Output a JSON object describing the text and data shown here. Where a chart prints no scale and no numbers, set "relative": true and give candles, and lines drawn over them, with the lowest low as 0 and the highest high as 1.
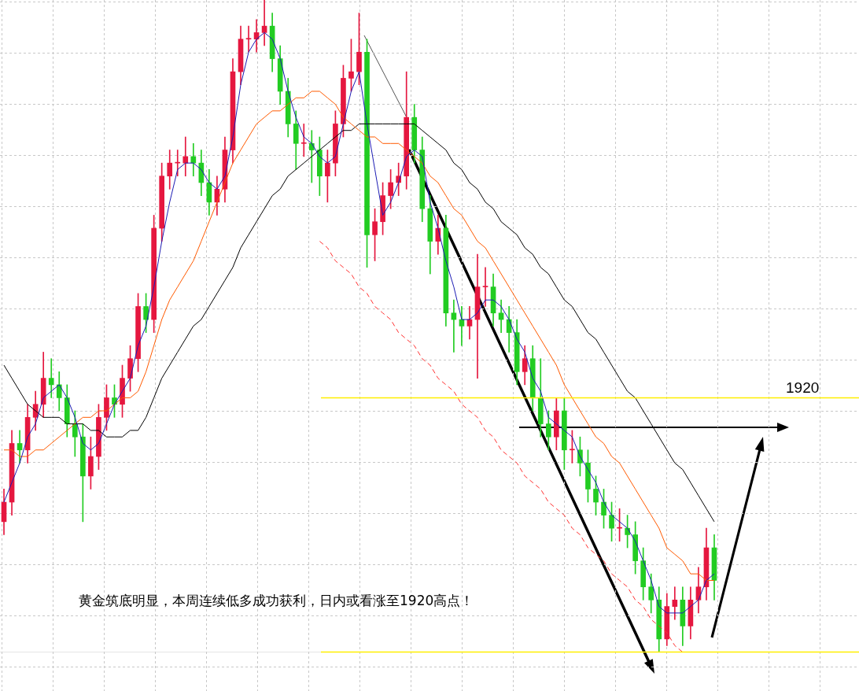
{
  "chart_data": {
    "type": "candlestick",
    "relative": true,
    "grid": true,
    "legend": false,
    "marker": "none",
    "categories": [
      null,
      null,
      null,
      null,
      null,
      null,
      null,
      null,
      null,
      null,
      null,
      null,
      null,
      null,
      null,
      null,
      null,
      null,
      null,
      null,
      null,
      null,
      null,
      null,
      null,
      null,
      null,
      null,
      null,
      null,
      null,
      null,
      null,
      null,
      null,
      null,
      null,
      null,
      null,
      null,
      null,
      null,
      null,
      null,
      null,
      null,
      null,
      null,
      null,
      null,
      null,
      null,
      null,
      null,
      null,
      null,
      null,
      null,
      null,
      null,
      null,
      null,
      null,
      null,
      null,
      null,
      null,
      null,
      null,
      null,
      null,
      null,
      null,
      null,
      null,
      null,
      null,
      null,
      null,
      null,
      null,
      null,
      null,
      null,
      null,
      null,
      null,
      null,
      null,
      null,
      null
    ],
    "ohlc": [
      [
        0.2,
        0.25,
        0.18,
        0.23
      ],
      [
        0.23,
        0.34,
        0.21,
        0.32
      ],
      [
        0.32,
        0.34,
        0.29,
        0.31
      ],
      [
        0.31,
        0.38,
        0.29,
        0.36
      ],
      [
        0.36,
        0.4,
        0.34,
        0.38
      ],
      [
        0.38,
        0.46,
        0.36,
        0.42
      ],
      [
        0.42,
        0.45,
        0.39,
        0.41
      ],
      [
        0.41,
        0.43,
        0.37,
        0.39
      ],
      [
        0.39,
        0.41,
        0.33,
        0.35
      ],
      [
        0.35,
        0.37,
        0.3,
        0.33
      ],
      [
        0.33,
        0.35,
        0.2,
        0.27
      ],
      [
        0.27,
        0.33,
        0.25,
        0.3
      ],
      [
        0.3,
        0.38,
        0.28,
        0.36
      ],
      [
        0.36,
        0.41,
        0.34,
        0.39
      ],
      [
        0.39,
        0.41,
        0.36,
        0.38
      ],
      [
        0.38,
        0.44,
        0.36,
        0.42
      ],
      [
        0.42,
        0.47,
        0.4,
        0.45
      ],
      [
        0.45,
        0.55,
        0.43,
        0.53
      ],
      [
        0.53,
        0.55,
        0.49,
        0.51
      ],
      [
        0.51,
        0.67,
        0.49,
        0.65
      ],
      [
        0.65,
        0.75,
        0.63,
        0.73
      ],
      [
        0.73,
        0.77,
        0.71,
        0.75
      ],
      [
        0.75,
        0.77,
        0.73,
        0.75
      ],
      [
        0.75,
        0.79,
        0.73,
        0.76
      ],
      [
        0.76,
        0.78,
        0.73,
        0.75
      ],
      [
        0.75,
        0.77,
        0.7,
        0.72
      ],
      [
        0.72,
        0.74,
        0.67,
        0.69
      ],
      [
        0.69,
        0.73,
        0.67,
        0.71
      ],
      [
        0.71,
        0.79,
        0.69,
        0.77
      ],
      [
        0.77,
        0.91,
        0.75,
        0.89
      ],
      [
        0.89,
        0.96,
        0.87,
        0.94
      ],
      [
        0.94,
        0.96,
        0.92,
        0.94
      ],
      [
        0.94,
        0.97,
        0.92,
        0.95
      ],
      [
        0.95,
        1.0,
        0.93,
        0.96
      ],
      [
        0.96,
        0.98,
        0.89,
        0.91
      ],
      [
        0.91,
        0.93,
        0.84,
        0.86
      ],
      [
        0.86,
        0.88,
        0.79,
        0.81
      ],
      [
        0.81,
        0.83,
        0.74,
        0.78
      ],
      [
        0.78,
        0.81,
        0.76,
        0.78
      ],
      [
        0.78,
        0.8,
        0.72,
        0.77
      ],
      [
        0.77,
        0.79,
        0.7,
        0.73
      ],
      [
        0.73,
        0.77,
        0.69,
        0.75
      ],
      [
        0.75,
        0.83,
        0.73,
        0.81
      ],
      [
        0.81,
        0.9,
        0.79,
        0.88
      ],
      [
        0.88,
        0.94,
        0.86,
        0.89
      ],
      [
        0.89,
        0.98,
        0.87,
        0.92
      ],
      [
        0.92,
        0.94,
        0.59,
        0.64
      ],
      [
        0.64,
        0.68,
        0.6,
        0.66
      ],
      [
        0.66,
        0.72,
        0.64,
        0.7
      ],
      [
        0.7,
        0.74,
        0.68,
        0.72
      ],
      [
        0.72,
        0.75,
        0.7,
        0.73
      ],
      [
        0.73,
        0.89,
        0.71,
        0.82
      ],
      [
        0.82,
        0.84,
        0.75,
        0.77
      ],
      [
        0.77,
        0.79,
        0.66,
        0.68
      ],
      [
        0.68,
        0.7,
        0.58,
        0.63
      ],
      [
        0.63,
        0.67,
        0.61,
        0.65
      ],
      [
        0.65,
        0.67,
        0.5,
        0.52
      ],
      [
        0.52,
        0.54,
        0.46,
        0.51
      ],
      [
        0.51,
        0.53,
        0.47,
        0.5
      ],
      [
        0.5,
        0.53,
        0.48,
        0.51
      ],
      [
        0.51,
        0.61,
        0.42,
        0.56
      ],
      [
        0.56,
        0.59,
        0.53,
        0.56
      ],
      [
        0.56,
        0.58,
        0.5,
        0.52
      ],
      [
        0.52,
        0.54,
        0.49,
        0.51
      ],
      [
        0.51,
        0.53,
        0.46,
        0.49
      ],
      [
        0.49,
        0.51,
        0.41,
        0.43
      ],
      [
        0.43,
        0.47,
        0.41,
        0.45
      ],
      [
        0.45,
        0.47,
        0.37,
        0.39
      ],
      [
        0.39,
        0.45,
        0.33,
        0.35
      ],
      [
        0.35,
        0.37,
        0.31,
        0.33
      ],
      [
        0.33,
        0.39,
        0.31,
        0.37
      ],
      [
        0.37,
        0.39,
        0.28,
        0.31
      ],
      [
        0.31,
        0.34,
        0.29,
        0.31
      ],
      [
        0.31,
        0.33,
        0.27,
        0.29
      ],
      [
        0.29,
        0.31,
        0.23,
        0.25
      ],
      [
        0.25,
        0.27,
        0.21,
        0.23
      ],
      [
        0.23,
        0.25,
        0.19,
        0.21
      ],
      [
        0.21,
        0.23,
        0.17,
        0.19
      ],
      [
        0.19,
        0.22,
        0.17,
        0.19
      ],
      [
        0.19,
        0.21,
        0.16,
        0.18
      ],
      [
        0.18,
        0.2,
        0.12,
        0.14
      ],
      [
        0.14,
        0.16,
        0.08,
        0.1
      ],
      [
        0.1,
        0.12,
        0.06,
        0.08
      ],
      [
        0.08,
        0.1,
        0.0,
        0.02
      ],
      [
        0.02,
        0.09,
        0.01,
        0.07
      ],
      [
        0.07,
        0.1,
        0.05,
        0.08
      ],
      [
        0.08,
        0.1,
        0.01,
        0.04
      ],
      [
        0.04,
        0.1,
        0.02,
        0.08
      ],
      [
        0.08,
        0.13,
        0.06,
        0.1
      ],
      [
        0.1,
        0.19,
        0.08,
        0.16
      ],
      [
        0.16,
        0.18,
        0.08,
        0.11
      ]
    ],
    "colors": [
      "#e5173f",
      "#e5173f",
      "#22cc22",
      "#e5173f",
      "#e5173f",
      "#e5173f",
      "#22cc22",
      "#22cc22",
      "#22cc22",
      "#22cc22",
      "#22cc22",
      "#e5173f",
      "#e5173f",
      "#e5173f",
      "#22cc22",
      "#e5173f",
      "#e5173f",
      "#e5173f",
      "#22cc22",
      "#e5173f",
      "#e5173f",
      "#e5173f",
      "#e5173f",
      "#e5173f",
      "#22cc22",
      "#22cc22",
      "#22cc22",
      "#e5173f",
      "#e5173f",
      "#e5173f",
      "#e5173f",
      "#e5173f",
      "#e5173f",
      "#e5173f",
      "#22cc22",
      "#22cc22",
      "#22cc22",
      "#22cc22",
      "#e5173f",
      "#22cc22",
      "#22cc22",
      "#e5173f",
      "#e5173f",
      "#e5173f",
      "#e5173f",
      "#e5173f",
      "#22cc22",
      "#e5173f",
      "#e5173f",
      "#e5173f",
      "#e5173f",
      "#e5173f",
      "#22cc22",
      "#22cc22",
      "#22cc22",
      "#e5173f",
      "#22cc22",
      "#22cc22",
      "#22cc22",
      "#e5173f",
      "#e5173f",
      "#e5173f",
      "#22cc22",
      "#22cc22",
      "#22cc22",
      "#22cc22",
      "#e5173f",
      "#22cc22",
      "#22cc22",
      "#22cc22",
      "#e5173f",
      "#22cc22",
      "#e5173f",
      "#22cc22",
      "#22cc22",
      "#22cc22",
      "#22cc22",
      "#22cc22",
      "#e5173f",
      "#22cc22",
      "#22cc22",
      "#22cc22",
      "#22cc22",
      "#22cc22",
      "#e5173f",
      "#e5173f",
      "#22cc22",
      "#e5173f",
      "#e5173f",
      "#e5173f",
      "#22cc22"
    ],
    "series": [
      {
        "type": "line",
        "color": "#1c1cb4",
        "values": [
          0.23,
          0.26,
          0.29,
          0.33,
          0.35,
          0.39,
          0.4,
          0.41,
          0.39,
          0.36,
          0.32,
          0.31,
          0.32,
          0.35,
          0.38,
          0.4,
          0.42,
          0.47,
          0.5,
          0.56,
          0.63,
          0.69,
          0.74,
          0.75,
          0.75,
          0.74,
          0.72,
          0.71,
          0.73,
          0.79,
          0.87,
          0.92,
          0.94,
          0.95,
          0.94,
          0.91,
          0.86,
          0.82,
          0.79,
          0.78,
          0.76,
          0.75,
          0.76,
          0.81,
          0.86,
          0.89,
          0.81,
          0.74,
          0.67,
          0.69,
          0.72,
          0.76,
          0.77,
          0.76,
          0.69,
          0.65,
          0.6,
          0.56,
          0.51,
          0.51,
          0.52,
          0.54,
          0.54,
          0.53,
          0.51,
          0.48,
          0.46,
          0.42,
          0.4,
          0.36,
          0.35,
          0.34,
          0.33,
          0.3,
          0.28,
          0.26,
          0.23,
          0.21,
          0.2,
          0.19,
          0.17,
          0.14,
          0.11,
          0.07,
          0.06,
          0.06,
          0.06,
          0.07,
          0.08,
          0.11,
          0.12
        ]
      },
      {
        "type": "line",
        "color": "#ff5a00",
        "values": [
          0.31,
          0.31,
          0.3,
          0.3,
          0.31,
          0.31,
          0.32,
          0.33,
          0.34,
          0.35,
          0.36,
          0.36,
          0.37,
          0.37,
          0.38,
          0.39,
          0.39,
          0.4,
          0.43,
          0.47,
          0.51,
          0.54,
          0.56,
          0.58,
          0.6,
          0.63,
          0.66,
          0.69,
          0.72,
          0.75,
          0.77,
          0.79,
          0.81,
          0.82,
          0.83,
          0.83,
          0.84,
          0.85,
          0.85,
          0.86,
          0.86,
          0.85,
          0.84,
          0.82,
          0.81,
          0.8,
          0.79,
          0.79,
          0.78,
          0.78,
          0.78,
          0.77,
          0.76,
          0.75,
          0.73,
          0.72,
          0.7,
          0.68,
          0.67,
          0.65,
          0.63,
          0.62,
          0.6,
          0.58,
          0.56,
          0.54,
          0.52,
          0.5,
          0.48,
          0.46,
          0.44,
          0.41,
          0.39,
          0.37,
          0.35,
          0.33,
          0.32,
          0.3,
          0.29,
          0.27,
          0.25,
          0.23,
          0.21,
          0.19,
          0.16,
          0.15,
          0.14,
          0.12,
          0.12,
          0.11,
          0.11
        ]
      },
      {
        "type": "line",
        "color": "#ff3030",
        "line_style": "dashed",
        "values": [
          null,
          null,
          null,
          null,
          null,
          null,
          null,
          null,
          null,
          null,
          null,
          null,
          null,
          null,
          null,
          null,
          null,
          null,
          null,
          null,
          null,
          null,
          null,
          null,
          null,
          null,
          null,
          null,
          null,
          null,
          null,
          null,
          null,
          null,
          null,
          null,
          null,
          null,
          null,
          null,
          0.63,
          0.62,
          0.6,
          0.59,
          0.58,
          0.56,
          0.55,
          0.53,
          0.52,
          0.51,
          0.49,
          0.48,
          0.47,
          0.45,
          0.44,
          0.42,
          0.41,
          0.4,
          0.38,
          0.37,
          0.36,
          0.34,
          0.33,
          0.31,
          0.3,
          0.29,
          0.27,
          0.26,
          0.25,
          0.23,
          0.22,
          0.21,
          0.19,
          0.18,
          0.16,
          0.15,
          0.14,
          0.12,
          0.11,
          0.1,
          0.08,
          0.07,
          0.05,
          0.04,
          0.03,
          0.01,
          0.0,
          null,
          null,
          null,
          null
        ]
      },
      {
        "type": "line",
        "color": "#000000",
        "values": [
          0.44,
          0.42,
          0.4,
          0.38,
          0.37,
          0.36,
          0.36,
          0.36,
          0.35,
          0.35,
          0.35,
          0.34,
          0.34,
          0.33,
          0.33,
          0.33,
          0.34,
          0.34,
          0.36,
          0.39,
          0.42,
          0.44,
          0.46,
          0.48,
          0.5,
          0.51,
          0.53,
          0.55,
          0.57,
          0.59,
          0.62,
          0.64,
          0.66,
          0.68,
          0.7,
          0.71,
          0.73,
          0.74,
          0.75,
          0.76,
          0.77,
          0.78,
          0.79,
          0.8,
          0.8,
          0.81,
          0.81,
          0.81,
          0.81,
          0.81,
          0.81,
          0.81,
          0.81,
          0.8,
          0.79,
          0.78,
          0.77,
          0.75,
          0.74,
          0.72,
          0.71,
          0.69,
          0.68,
          0.66,
          0.65,
          0.64,
          0.62,
          0.61,
          0.59,
          0.58,
          0.56,
          0.54,
          0.53,
          0.51,
          0.49,
          0.48,
          0.46,
          0.44,
          0.42,
          0.4,
          0.39,
          0.37,
          0.35,
          0.33,
          0.31,
          0.29,
          0.28,
          0.26,
          0.24,
          0.22,
          0.2
        ]
      }
    ],
    "ref_lines": [
      {
        "axis": "y",
        "value": 0.39,
        "color": "#ffee00"
      },
      {
        "axis": "y",
        "value": 0,
        "color": "#ffee00"
      }
    ],
    "annotations": [
      "1920",
      "黄金筑底明显，本周连续低多成功获利，日内或看涨至1920高点！"
    ]
  }
}
